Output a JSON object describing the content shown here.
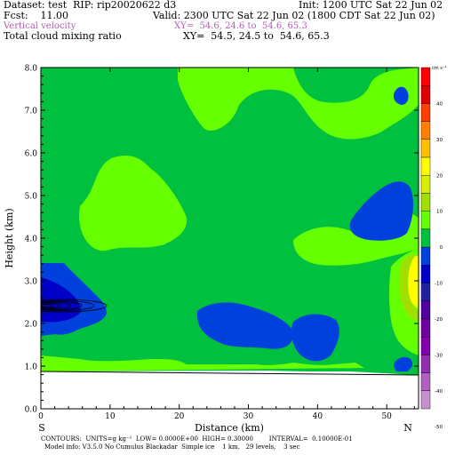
{
  "header": {
    "dataset": "Dataset: test  RIP: rip20020622 d3",
    "init": "Init: 1200 UTC Sat 22 Jun 02",
    "fcst": "Fcst:    11.00",
    "valid": "Valid: 2300 UTC Sat 22 Jun 02 (1800 CDT Sat 22 Jun 02)",
    "field1_name": "Vertical velocity",
    "field1_xy": "XY=  54.6, 24.6 to  54.6, 65.3",
    "field2_name": "Total cloud mixing ratio",
    "field2_xy": "XY=  54.5, 24.5 to  54.6, 65.3"
  },
  "axes": {
    "xlabel": "Distance (km)",
    "ylabel": "Height (km)",
    "left_end": "S",
    "right_end": "N",
    "colorbar_unit": "cm s⁻¹"
  },
  "footer": {
    "line1": "CONTOURS:  UNITS=g kg⁻¹  LOW= 0.0000E+00  HIGH= 0.30000        INTERVAL=  0.10000E-01",
    "line2": "Model info: V3.5.0 No Cumulus Blackadar  Simple ice    1 km,   29 levels,    3 sec"
  },
  "colors": {
    "green": "#00c040",
    "light_green": "#66ff00",
    "blue": "#0040dd",
    "dark_blue": "#0000c8",
    "white": "#ffffff"
  },
  "chart_data": {
    "type": "heatmap",
    "x_range": [
      0,
      54.6
    ],
    "y_range": [
      0,
      8
    ],
    "x_ticks": [
      0,
      10,
      20,
      30,
      40,
      50
    ],
    "x_tick_labels": [
      "0",
      "10",
      "20",
      "30",
      "40",
      "50"
    ],
    "y_ticks": [
      0,
      1,
      2,
      3,
      4,
      5,
      6,
      7,
      8
    ],
    "y_tick_labels": [
      "0.0",
      "1.0",
      "2.0",
      "3.0",
      "4.0",
      "5.0",
      "6.0",
      "7.0",
      "8.0"
    ],
    "colorbar": {
      "labels": [
        "40",
        "30",
        "20",
        "10",
        "0",
        "-10",
        "-20",
        "-30",
        "-40",
        "-50"
      ],
      "colors": [
        "#ff0000",
        "#e00000",
        "#ff4000",
        "#ff8000",
        "#ffc000",
        "#ffff00",
        "#d8f000",
        "#a0e000",
        "#66ff00",
        "#00c040",
        "#0040dd",
        "#0000c8",
        "#2020a0",
        "#5000a0",
        "#7000a0",
        "#8000b0",
        "#9030b0",
        "#b060c0",
        "#c890d0"
      ]
    },
    "terrain_height_km": [
      0.9,
      0.9,
      0.85,
      0.8
    ]
  }
}
